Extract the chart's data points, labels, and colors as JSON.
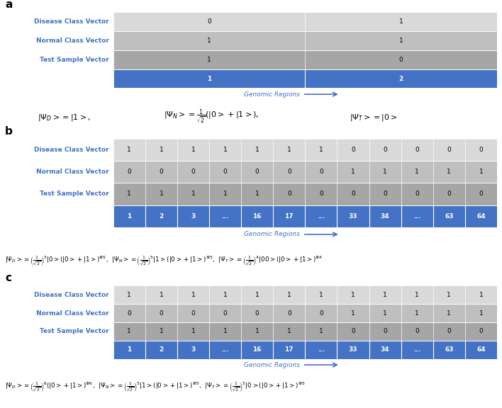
{
  "bg_color": "#ffffff",
  "blue": "#4472C4",
  "row_colors": {
    "disease": "#d9d9d9",
    "normal": "#bfbfbf",
    "test": "#a6a6a6",
    "header": "#4472C4"
  },
  "panel_a": {
    "label": "a",
    "row_labels": [
      "Disease Class Vector",
      "Normal Class Vector",
      "Test Sample Vector"
    ],
    "data": [
      [
        "0",
        "1"
      ],
      [
        "1",
        "1"
      ],
      [
        "1",
        "0"
      ]
    ],
    "header": [
      "1",
      "2"
    ]
  },
  "panel_b": {
    "label": "b",
    "row_labels": [
      "Disease Class Vector",
      "Normal Class Vector",
      "Test Sample Vector"
    ],
    "data": [
      [
        "1",
        "1",
        "1",
        "1",
        "1",
        "1",
        "1",
        "0",
        "0",
        "0",
        "0",
        "0"
      ],
      [
        "0",
        "0",
        "0",
        "0",
        "0",
        "0",
        "0",
        "1",
        "1",
        "1",
        "1",
        "1"
      ],
      [
        "1",
        "1",
        "1",
        "1",
        "1",
        "0",
        "0",
        "0",
        "0",
        "0",
        "0",
        "0"
      ]
    ],
    "header": [
      "1",
      "2",
      "3",
      "...",
      "16",
      "17",
      "...",
      "33",
      "34",
      "...",
      "63",
      "64"
    ]
  },
  "panel_c": {
    "label": "c",
    "row_labels": [
      "Disease Class Vector",
      "Normal Class Vector",
      "Test Sample Vector"
    ],
    "data": [
      [
        "1",
        "1",
        "1",
        "1",
        "1",
        "1",
        "1",
        "1",
        "1",
        "1",
        "1",
        "1"
      ],
      [
        "0",
        "0",
        "0",
        "0",
        "0",
        "0",
        "0",
        "1",
        "1",
        "1",
        "1",
        "1"
      ],
      [
        "1",
        "1",
        "1",
        "1",
        "1",
        "1",
        "1",
        "0",
        "0",
        "0",
        "0",
        "0"
      ]
    ],
    "header": [
      "1",
      "2",
      "3",
      "...",
      "16",
      "17",
      "...",
      "33",
      "34",
      "...",
      "63",
      "64"
    ]
  },
  "genomic_label": "Genomic Regions",
  "formula_a_parts": [
    "|\\Psi_D >= |1 >,",
    "|\\Psi_N >= \\frac{1}{\\sqrt{2}}(|0 > +|1 >),",
    "|\\Psi_T >= |0 >"
  ],
  "formula_b": "$|\\Psi_D >=\\left(\\frac{1}{\\sqrt{2}}\\right)^{5}|0 > (|0 > +|1 >)^{\\otimes 5}$,  $|\\Psi_N >=\\left(\\frac{1}{\\sqrt{2}}\\right)^{5}|1 > (|0 > +|1 >)^{\\otimes 5}$,  $|\\Psi_T >=\\left(\\frac{1}{\\sqrt{2}}\\right)^{4}|00 > (|0 > +|1 >)^{\\otimes 4}$",
  "formula_c": "$|\\Psi_D >=\\left(\\frac{1}{\\sqrt{2}}\\right)^{6}(|0 > +|1 >)^{\\otimes 6}$,  $|\\Psi_N >=\\left(\\frac{1}{\\sqrt{2}}\\right)^{5}|1 > (|0 > +|1 >)^{\\otimes 5}$,  $|\\Psi_T >=\\left(\\frac{1}{\\sqrt{2}}\\right)^{5}|0 > (|0 > +|1 >)^{\\otimes 5}$"
}
